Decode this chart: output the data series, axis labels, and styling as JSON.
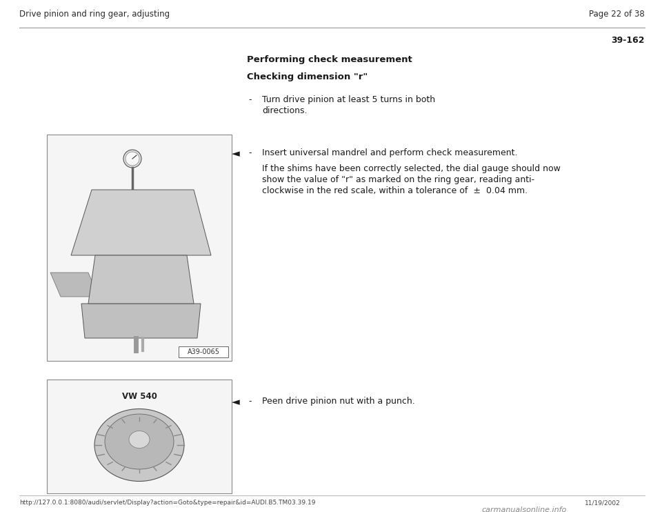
{
  "bg_color": "#ffffff",
  "header_left": "Drive pinion and ring gear, adjusting",
  "header_right": "Page 22 of 38",
  "page_number": "39-162",
  "section_title1": "Performing check measurement",
  "section_title2": "Checking dimension \"r\"",
  "bullet1_text_line1": "Turn drive pinion at least 5 turns in both",
  "bullet1_text_line2": "directions.",
  "arrow_symbol": "◄",
  "bullet2_text": "Insert universal mandrel and perform check measurement.",
  "para2_line1": "If the shims have been correctly selected, the dial gauge should now",
  "para2_line2": "show the value of \"r\" as marked on the ring gear, reading anti-",
  "para2_line3": "clockwise in the red scale, within a tolerance of  ±  0.04 mm.",
  "img1_label": "A39-0065",
  "img2_label": "VW 540",
  "bullet3_text": "Peen drive pinion nut with a punch.",
  "footer_url": "http://127.0.0.1:8080/audi/servlet/Display?action=Goto&type=repair&id=AUDI.B5.TM03.39.19",
  "footer_date": "11/19/2002",
  "footer_site": "carmanualsonline.info",
  "line_color": "#999999",
  "text_color": "#1a1a1a",
  "header_color": "#2a2a2a",
  "img_border_color": "#888888",
  "img_bg_color": "#f5f5f5"
}
